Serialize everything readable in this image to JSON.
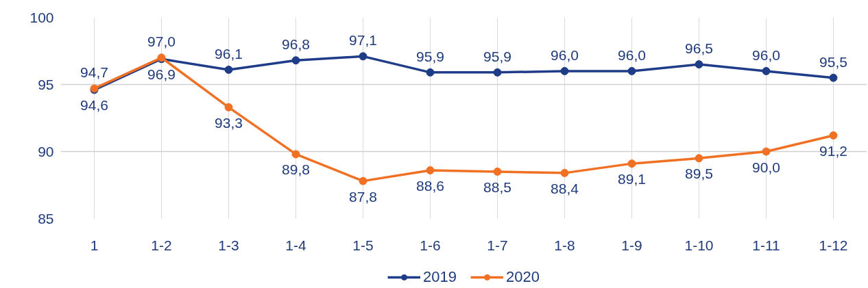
{
  "chart_data": {
    "type": "line",
    "categories": [
      "1",
      "1-2",
      "1-3",
      "1-4",
      "1-5",
      "1-6",
      "1-7",
      "1-8",
      "1-9",
      "1-10",
      "1-11",
      "1-12"
    ],
    "series": [
      {
        "name": "2019",
        "color": "#1f3c88",
        "values": [
          94.6,
          96.9,
          96.1,
          96.8,
          97.1,
          95.9,
          95.9,
          96.0,
          96.0,
          96.5,
          96.0,
          95.5
        ],
        "value_labels": [
          "94,6",
          "96,9",
          "96,1",
          "96,8",
          "97,1",
          "95,9",
          "95,9",
          "96,0",
          "96,0",
          "96,5",
          "96,0",
          "95,5"
        ]
      },
      {
        "name": "2020",
        "color": "#f07024",
        "values": [
          94.7,
          97.0,
          93.3,
          89.8,
          87.8,
          88.6,
          88.5,
          88.4,
          89.1,
          89.5,
          90.0,
          91.2
        ],
        "value_labels": [
          "94,7",
          "97,0",
          "93,3",
          "89,8",
          "87,8",
          "88,6",
          "88,5",
          "88,4",
          "89,1",
          "89,5",
          "90,0",
          "91,2"
        ]
      }
    ],
    "ylim": [
      85,
      100
    ],
    "yticks": [
      85,
      90,
      95,
      100
    ],
    "grid": true,
    "legend": "bottom",
    "marker": "circle",
    "line_style": "solid"
  }
}
